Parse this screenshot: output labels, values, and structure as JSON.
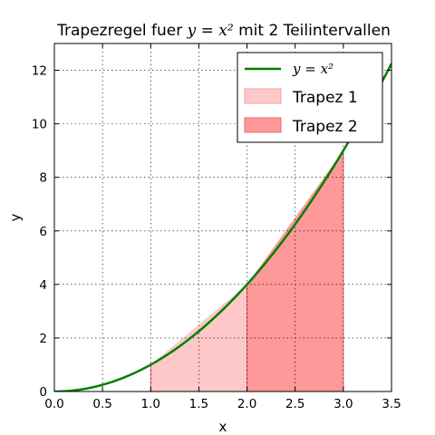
{
  "chart_data": {
    "type": "area",
    "title_prefix": "Trapezregel fuer ",
    "title_math": "y = x²",
    "title_suffix": " mit 2 Teilintervallen",
    "xlabel": "x",
    "ylabel": "y",
    "xlim": [
      0,
      3.5
    ],
    "ylim": [
      0,
      13
    ],
    "xticks": [
      0.0,
      0.5,
      1.0,
      1.5,
      2.0,
      2.5,
      3.0,
      3.5
    ],
    "xtick_labels": [
      "0.0",
      "0.5",
      "1.0",
      "1.5",
      "2.0",
      "2.5",
      "3.0",
      "3.5"
    ],
    "yticks": [
      0,
      2,
      4,
      6,
      8,
      10,
      12
    ],
    "ytick_labels": [
      "0",
      "2",
      "4",
      "6",
      "8",
      "10",
      "12"
    ],
    "grid": true,
    "legend_position": "top-right",
    "curve": {
      "name": "y = x²",
      "function": "x^2",
      "x_range": [
        0,
        3.5
      ],
      "color": "#008000"
    },
    "trapezoids": [
      {
        "name": "Trapez 1",
        "x": [
          1,
          2
        ],
        "y": [
          1,
          4
        ],
        "color": "#ffc8c8"
      },
      {
        "name": "Trapez 2",
        "x": [
          2,
          3
        ],
        "y": [
          4,
          9
        ],
        "color": "#ff9898"
      }
    ]
  }
}
